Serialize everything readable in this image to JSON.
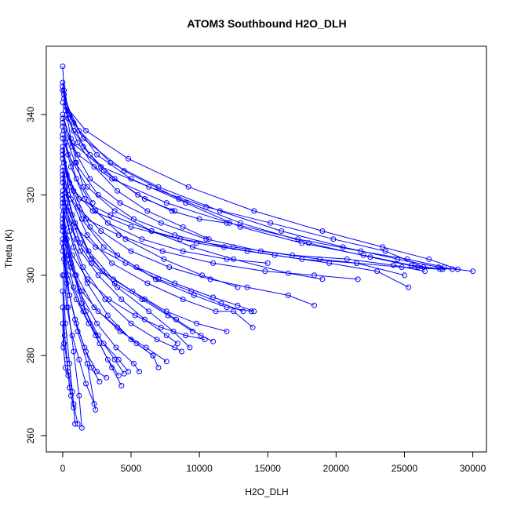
{
  "chart_data": {
    "type": "scatter",
    "title": "ATOM3 Southbound H2O_DLH",
    "xlabel": "H2O_DLH",
    "ylabel": "Theta (K)",
    "xlim": [
      -1200,
      31000
    ],
    "ylim": [
      256,
      357
    ],
    "xticks": [
      0,
      5000,
      10000,
      15000,
      20000,
      25000,
      30000
    ],
    "yticks": [
      260,
      280,
      300,
      320,
      340
    ],
    "grid": false,
    "legend": "none",
    "colors": {
      "series": "#0000ff",
      "axis": "#000000",
      "background": "#ffffff"
    },
    "marker": "open-circle",
    "connect_points": true,
    "profiles": [
      {
        "x": [
          0,
          100,
          300,
          600,
          1000,
          1500,
          2200
        ],
        "y": [
          352,
          346,
          340,
          334,
          328,
          322,
          318
        ]
      },
      {
        "x": [
          0,
          500,
          1500,
          3000,
          5500,
          8000,
          10000,
          12000
        ],
        "y": [
          348,
          340,
          332,
          326,
          320,
          316,
          314,
          313
        ]
      },
      {
        "x": [
          0,
          800,
          2500,
          5000,
          9000,
          13000,
          17500,
          22000,
          25500,
          27800
        ],
        "y": [
          346,
          338,
          330,
          324,
          318,
          312,
          308,
          305,
          302.5,
          301.5
        ]
      },
      {
        "x": [
          100,
          1200,
          3500,
          7000,
          11500,
          16000,
          20500,
          24500,
          27500,
          30000
        ],
        "y": [
          344,
          336,
          328,
          322,
          316,
          311,
          307,
          304,
          302,
          301
        ]
      },
      {
        "x": [
          200,
          1500,
          4500,
          8500,
          13000,
          18000,
          22500,
          26000,
          28500
        ],
        "y": [
          342,
          334,
          326,
          319,
          313,
          308,
          304.5,
          302,
          301.5
        ]
      },
      {
        "x": [
          0,
          700,
          2000,
          4200,
          7200,
          10500,
          14500,
          18800,
          21500,
          25000
        ],
        "y": [
          340,
          332,
          324,
          318,
          313,
          309,
          306,
          304,
          303,
          300
        ]
      },
      {
        "x": [
          0,
          400,
          1800,
          3800,
          6500,
          9500,
          12500,
          16500,
          19000
        ],
        "y": [
          338,
          330,
          322,
          316,
          311,
          307,
          304,
          300.5,
          299
        ]
      },
      {
        "x": [
          100,
          900,
          2600,
          5200,
          8200,
          11800,
          15500,
          19500,
          23000,
          25300
        ],
        "y": [
          336,
          328,
          320,
          314,
          310,
          307,
          305,
          303,
          301,
          297
        ]
      },
      {
        "x": [
          0,
          600,
          1600,
          3300,
          5800,
          8800,
          12000,
          15000
        ],
        "y": [
          335,
          327,
          319,
          313,
          309,
          306,
          304,
          303
        ]
      },
      {
        "x": [
          0,
          300,
          1100,
          2800,
          5000,
          7800,
          10800,
          13500,
          16500,
          18400
        ],
        "y": [
          334,
          325,
          317,
          311,
          306,
          302,
          299,
          297,
          295,
          292.5
        ]
      },
      {
        "x": [
          200,
          1000,
          2400,
          4600,
          7400,
          10200,
          12800
        ],
        "y": [
          333,
          324,
          316,
          309,
          304,
          300,
          297
        ]
      },
      {
        "x": [
          0,
          500,
          1400,
          3000,
          5400,
          8200,
          11000,
          12800,
          14000
        ],
        "y": [
          332,
          323,
          314,
          307,
          302,
          298,
          294.5,
          292.5,
          291
        ]
      },
      {
        "x": [
          0,
          800,
          2000,
          4000,
          6800,
          9600,
          12000,
          13800
        ],
        "y": [
          330,
          321,
          312,
          305,
          299,
          295,
          292,
          291
        ]
      },
      {
        "x": [
          100,
          600,
          1800,
          3600,
          6200,
          8800,
          11200,
          12500,
          13900
        ],
        "y": [
          328,
          319,
          310,
          303,
          298,
          294,
          291,
          291,
          287
        ]
      },
      {
        "x": [
          0,
          400,
          1300,
          2900,
          5100,
          7600,
          9800,
          12000
        ],
        "y": [
          326,
          317,
          308,
          301,
          296,
          291,
          288,
          286
        ]
      },
      {
        "x": [
          0,
          700,
          1900,
          3700,
          6000,
          8300,
          10100,
          11000
        ],
        "y": [
          324,
          315,
          306,
          299,
          294,
          289,
          285,
          283.5
        ]
      },
      {
        "x": [
          200,
          900,
          2100,
          4000,
          6300,
          8100,
          9300
        ],
        "y": [
          322,
          313,
          304,
          297,
          291,
          286,
          282
        ]
      },
      {
        "x": [
          0,
          500,
          1500,
          3100,
          5000,
          6900,
          8200,
          8700
        ],
        "y": [
          320,
          311,
          302,
          294,
          288,
          284,
          282,
          281
        ]
      },
      {
        "x": [
          0,
          300,
          1000,
          2300,
          4200,
          6100,
          7600
        ],
        "y": [
          318,
          309,
          300,
          292,
          286,
          282,
          278.5
        ]
      },
      {
        "x": [
          100,
          800,
          1800,
          3300,
          5000,
          6600,
          7000
        ],
        "y": [
          316,
          307,
          298,
          290,
          284,
          280,
          277
        ]
      },
      {
        "x": [
          0,
          400,
          1200,
          2500,
          3900,
          5200,
          5600
        ],
        "y": [
          314,
          305,
          296,
          288,
          282,
          278,
          276
        ]
      },
      {
        "x": [
          0,
          600,
          1400,
          2600,
          3800,
          4500
        ],
        "y": [
          312,
          303,
          293,
          285,
          279,
          275.5
        ]
      },
      {
        "x": [
          200,
          900,
          1700,
          2700,
          3600,
          4300
        ],
        "y": [
          310,
          300,
          291,
          283,
          277,
          272.5
        ]
      },
      {
        "x": [
          0,
          300,
          900,
          1700,
          2500,
          3200
        ],
        "y": [
          308,
          298,
          289,
          281,
          276,
          274.5
        ]
      },
      {
        "x": [
          0,
          500,
          1100,
          1800,
          2400
        ],
        "y": [
          306,
          295,
          286,
          278,
          266.5
        ]
      },
      {
        "x": [
          100,
          400,
          800,
          1200,
          1400
        ],
        "y": [
          304,
          292,
          281,
          270,
          262
        ]
      },
      {
        "x": [
          0,
          200,
          500,
          800,
          1100
        ],
        "y": [
          300,
          288,
          278,
          268,
          263
        ]
      },
      {
        "x": [
          0,
          150,
          400,
          700,
          900
        ],
        "y": [
          296,
          285,
          276,
          271,
          263
        ]
      },
      {
        "x": [
          0,
          100,
          300,
          500,
          800
        ],
        "y": [
          292,
          283,
          279,
          272,
          267
        ]
      },
      {
        "x": [
          0,
          50,
          200,
          400,
          600
        ],
        "y": [
          288,
          282,
          277,
          275,
          270
        ]
      },
      {
        "x": [
          0,
          300,
          1200,
          3500,
          6500,
          9800,
          13500,
          17500,
          21500,
          24800,
          27600
        ],
        "y": [
          331,
          325,
          319,
          315,
          311,
          308,
          306,
          304,
          303,
          302,
          301.5
        ]
      },
      {
        "x": [
          0,
          600,
          2200,
          5000,
          8600,
          12500,
          16800,
          20800,
          24200,
          26500
        ],
        "y": [
          329,
          322,
          316,
          312,
          309,
          307,
          305,
          304,
          302.5,
          301
        ]
      },
      {
        "x": [
          0,
          400,
          1700,
          4100,
          7300,
          11000,
          14800,
          18400,
          21600
        ],
        "y": [
          327,
          320,
          314,
          310,
          306,
          303,
          301,
          300,
          299
        ]
      },
      {
        "x": [
          0,
          200,
          900,
          2400,
          4600,
          7000,
          9400,
          11600,
          13200
        ],
        "y": [
          325,
          318,
          312,
          307,
          303,
          299,
          296,
          293,
          291
        ]
      },
      {
        "x": [
          0,
          300,
          1000,
          2100,
          3800,
          5800,
          7700,
          9500
        ],
        "y": [
          323,
          316,
          309,
          303,
          298,
          294,
          290,
          286
        ]
      },
      {
        "x": [
          0,
          500,
          1300,
          2600,
          4300,
          6000,
          7600,
          8400
        ],
        "y": [
          321,
          313,
          306,
          300,
          294,
          289,
          285,
          283
        ]
      },
      {
        "x": [
          0,
          100,
          700,
          1800,
          3400,
          5300,
          7200,
          9000,
          10400
        ],
        "y": [
          319,
          312,
          305,
          299,
          294,
          290,
          287,
          285,
          284
        ]
      },
      {
        "x": [
          0,
          200,
          600,
          1400,
          2600,
          4000,
          5400,
          6600
        ],
        "y": [
          317,
          309,
          302,
          296,
          291,
          287,
          283,
          280
        ]
      },
      {
        "x": [
          0,
          100,
          400,
          1000,
          1900,
          3000,
          4100,
          4800
        ],
        "y": [
          315,
          307,
          300,
          294,
          288,
          283,
          279,
          276
        ]
      },
      {
        "x": [
          0,
          300,
          800,
          1500,
          2400,
          3300,
          4100
        ],
        "y": [
          313,
          305,
          297,
          291,
          285,
          279,
          275
        ]
      },
      {
        "x": [
          0,
          200,
          500,
          1000,
          1600,
          2100,
          2700
        ],
        "y": [
          311,
          303,
          295,
          288,
          282,
          277,
          273.5
        ]
      },
      {
        "x": [
          0,
          100,
          300,
          700,
          1200,
          1700,
          2300
        ],
        "y": [
          309,
          300,
          292,
          285,
          279,
          273,
          268
        ]
      },
      {
        "x": [
          0,
          700,
          2800,
          6300,
          10500,
          15200,
          19800,
          23600,
          26400
        ],
        "y": [
          339,
          333,
          327,
          322,
          317,
          313,
          309,
          306,
          302
        ]
      },
      {
        "x": [
          0,
          1100,
          3600,
          7600,
          12200,
          17200,
          21800,
          25200,
          27900
        ],
        "y": [
          337,
          330,
          324,
          318,
          313,
          309,
          306,
          304,
          302
        ]
      },
      {
        "x": [
          0,
          1700,
          4800,
          9200,
          14000,
          19000,
          23400,
          26800,
          28900
        ],
        "y": [
          343,
          336,
          329,
          322,
          316,
          311,
          307,
          304,
          301.5
        ]
      },
      {
        "x": [
          100,
          400,
          1100,
          2300,
          4000,
          6200,
          8800,
          10700
        ],
        "y": [
          345,
          339,
          333,
          327,
          321,
          316,
          312,
          309
        ]
      },
      {
        "x": [
          0,
          200,
          800,
          2000,
          3800,
          6000,
          8200
        ],
        "y": [
          347,
          341,
          336,
          330,
          324,
          319,
          316
        ]
      }
    ]
  }
}
